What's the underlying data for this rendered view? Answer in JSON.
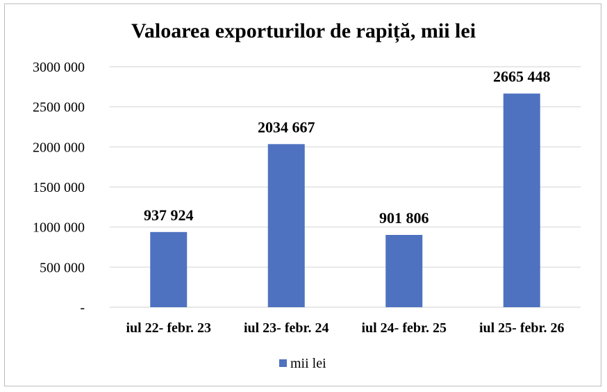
{
  "chart_data": {
    "type": "bar",
    "title": "Valoarea exporturilor de rapiță, mii lei",
    "categories": [
      "iul 22- febr. 23",
      "iul 23- febr. 24",
      "iul 24- febr. 25",
      "iul 25- febr. 26"
    ],
    "series": [
      {
        "name": "mii lei",
        "values": [
          937924,
          2034667,
          901806,
          2665448
        ],
        "value_labels": [
          "937 924",
          "2034 667",
          "901 806",
          "2665 448"
        ],
        "color": "#4f72c0"
      }
    ],
    "ylim": [
      0,
      3000000
    ],
    "y_ticks": [
      0,
      500000,
      1000000,
      1500000,
      2000000,
      2500000,
      3000000
    ],
    "y_tick_labels": [
      "-",
      "500 000",
      "1000 000",
      "1500 000",
      "2000 000",
      "2500 000",
      "3000 000"
    ],
    "xlabel": "",
    "ylabel": "",
    "grid": true,
    "legend_position": "bottom",
    "colors": {
      "bar": "#4f72c0",
      "grid": "#d9d9d9",
      "frame": "#bdbdbd"
    }
  }
}
